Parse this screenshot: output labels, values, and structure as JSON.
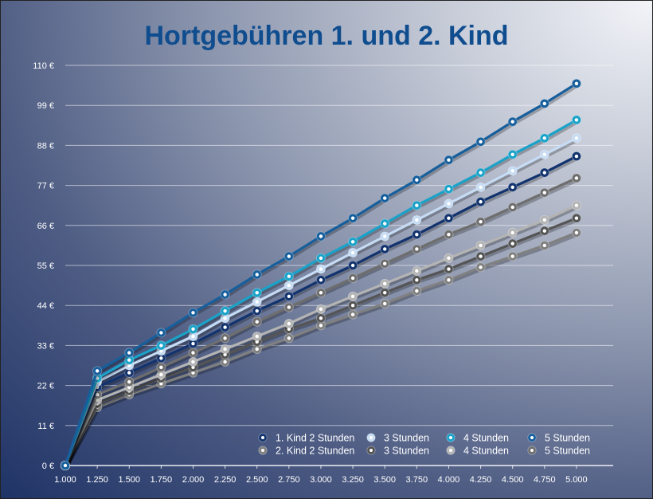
{
  "chart_data": {
    "type": "line",
    "title": "Hortgebühren 1. und 2. Kind",
    "xlabel": "",
    "ylabel": "",
    "x": [
      "1.000",
      "1.250",
      "1.500",
      "1.750",
      "2.000",
      "2.250",
      "2.500",
      "2.750",
      "3.000",
      "3.250",
      "3.500",
      "3.750",
      "4.000",
      "4.250",
      "4.500",
      "4.750",
      "5.000"
    ],
    "y_ticks": [
      "0 €",
      "11 €",
      "22 €",
      "33 €",
      "44 €",
      "55 €",
      "66 €",
      "77 €",
      "88 €",
      "99 €",
      "110 €"
    ],
    "ylim": [
      0,
      110
    ],
    "grid": true,
    "legend_position": "bottom-right",
    "legend_rows": [
      [
        "1. Kind 2 Stunden",
        "3 Stunden",
        "4 Stunden",
        "5 Stunden"
      ],
      [
        "2. Kind 2 Stunden",
        "3 Stunden",
        "4 Stunden",
        "5 Stunden"
      ]
    ],
    "series": [
      {
        "color": "#12336e",
        "values": [
          0,
          21.5,
          25.5,
          29.5,
          33.5,
          38,
          42.5,
          46.5,
          51,
          55,
          59.5,
          63.5,
          68,
          72.5,
          76.5,
          80.5,
          85
        ]
      },
      {
        "color": "#c6dcf4",
        "values": [
          0,
          23,
          27.5,
          31.5,
          35.5,
          40.5,
          45,
          49.5,
          54,
          58.5,
          63,
          67.5,
          72,
          76.5,
          81,
          85.5,
          90
        ]
      },
      {
        "color": "#1aa2c9",
        "values": [
          0,
          24,
          29,
          33,
          37.5,
          42.5,
          47.5,
          52,
          57,
          61.5,
          66.5,
          71.5,
          76,
          80.5,
          85.5,
          90,
          95
        ]
      },
      {
        "color": "#175f9c",
        "values": [
          0,
          26,
          31,
          36.5,
          42,
          47,
          52.5,
          57.5,
          63,
          68,
          73.5,
          78.5,
          84,
          89,
          94.5,
          99.5,
          105
        ]
      },
      {
        "color": "#808080",
        "values": [
          0,
          16,
          19.5,
          22.5,
          25.5,
          28.5,
          32,
          35,
          38.5,
          41.5,
          44.5,
          48,
          51,
          54.5,
          57.5,
          60.5,
          64
        ]
      },
      {
        "color": "#555555",
        "values": [
          0,
          17,
          20.5,
          24,
          27,
          30.5,
          34,
          37.5,
          40.5,
          44,
          47.5,
          51,
          54,
          57.5,
          61,
          64.5,
          68
        ]
      },
      {
        "color": "#b4b4b4",
        "values": [
          0,
          18,
          21.5,
          25,
          28.5,
          32,
          35.5,
          39,
          43,
          46.5,
          50,
          53.5,
          57,
          60.5,
          64,
          67.5,
          71.5
        ]
      },
      {
        "color": "#6e6e6e",
        "values": [
          0,
          19.5,
          23,
          27,
          31,
          35,
          39.5,
          43.5,
          47.5,
          51.5,
          55.5,
          59.5,
          63.5,
          67,
          71,
          75,
          79
        ]
      }
    ]
  }
}
